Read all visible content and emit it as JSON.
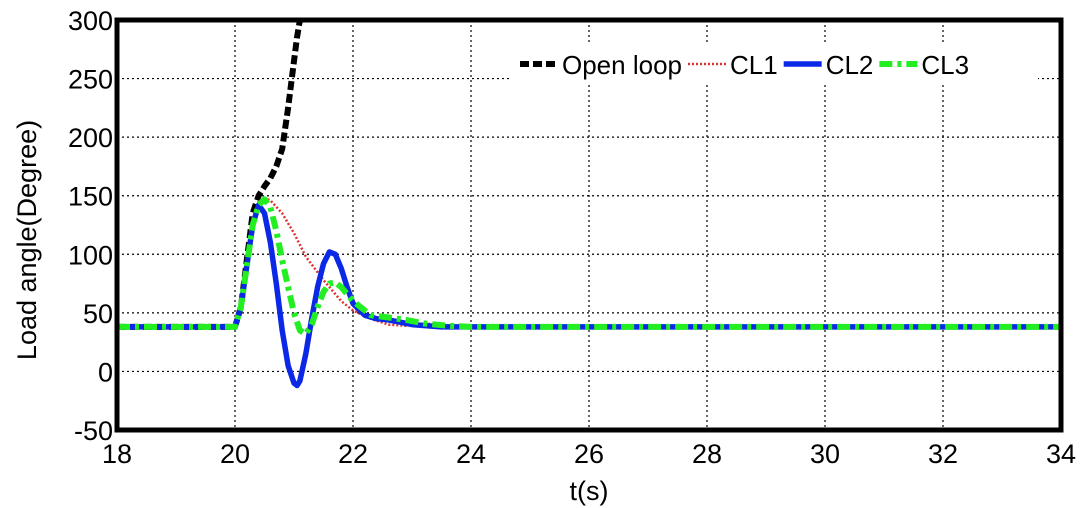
{
  "chart_data": {
    "type": "line",
    "title": "",
    "xlabel": "t(s)",
    "ylabel": "Load angle(Degree)",
    "xlim": [
      18,
      34
    ],
    "ylim": [
      -50,
      300
    ],
    "xticks": [
      18,
      20,
      22,
      24,
      26,
      28,
      30,
      32,
      34
    ],
    "yticks": [
      -50,
      0,
      50,
      100,
      150,
      200,
      250,
      300
    ],
    "grid": true,
    "legend_position": "top-right",
    "series": [
      {
        "name": "Open loop",
        "color": "#000000",
        "style": "dashed",
        "x": [
          18,
          19,
          20,
          20.1,
          20.2,
          20.3,
          20.4,
          20.5,
          20.6,
          20.7,
          20.8,
          20.9,
          21.0,
          21.05,
          21.1
        ],
        "y": [
          38,
          38,
          38,
          55,
          95,
          135,
          150,
          158,
          165,
          175,
          190,
          225,
          265,
          285,
          300
        ]
      },
      {
        "name": "CL1",
        "color": "#e03030",
        "style": "dotted",
        "x": [
          18,
          19,
          20,
          20.1,
          20.2,
          20.3,
          20.4,
          20.5,
          20.6,
          20.8,
          21.0,
          21.2,
          21.5,
          21.8,
          22.0,
          22.3,
          22.6,
          22.9,
          23.2,
          23.6,
          24,
          26,
          28,
          30,
          32,
          34
        ],
        "y": [
          38,
          38,
          38,
          55,
          95,
          130,
          145,
          148,
          146,
          135,
          118,
          98,
          78,
          60,
          52,
          45,
          40,
          39,
          41,
          39,
          38,
          38,
          38,
          38,
          38,
          38
        ]
      },
      {
        "name": "CL2",
        "color": "#0a28e6",
        "style": "solid",
        "x": [
          18,
          19,
          20,
          20.1,
          20.2,
          20.3,
          20.4,
          20.5,
          20.6,
          20.7,
          20.8,
          20.9,
          21.0,
          21.05,
          21.1,
          21.2,
          21.3,
          21.4,
          21.5,
          21.6,
          21.7,
          21.8,
          21.9,
          22.0,
          22.2,
          22.4,
          22.6,
          22.8,
          23.0,
          23.5,
          24,
          26,
          28,
          30,
          32,
          34
        ],
        "y": [
          38,
          38,
          38,
          55,
          90,
          125,
          142,
          135,
          110,
          75,
          35,
          5,
          -10,
          -12,
          -8,
          15,
          45,
          72,
          92,
          102,
          100,
          88,
          72,
          58,
          48,
          45,
          44,
          42,
          40,
          38,
          38,
          38,
          38,
          38,
          38,
          38
        ]
      },
      {
        "name": "CL3",
        "color": "#22ee22",
        "style": "dashdot",
        "x": [
          18,
          19,
          20,
          20.1,
          20.2,
          20.3,
          20.4,
          20.5,
          20.6,
          20.7,
          20.8,
          20.9,
          21.0,
          21.1,
          21.2,
          21.3,
          21.4,
          21.5,
          21.6,
          21.7,
          21.8,
          22.0,
          22.3,
          22.6,
          22.9,
          23.2,
          23.6,
          24,
          26,
          28,
          30,
          32,
          34
        ],
        "y": [
          38,
          38,
          38,
          55,
          90,
          125,
          142,
          147,
          140,
          120,
          95,
          72,
          50,
          35,
          32,
          40,
          55,
          68,
          75,
          76,
          72,
          60,
          48,
          46,
          44,
          41,
          39,
          38,
          38,
          38,
          38,
          38,
          38
        ]
      }
    ]
  }
}
